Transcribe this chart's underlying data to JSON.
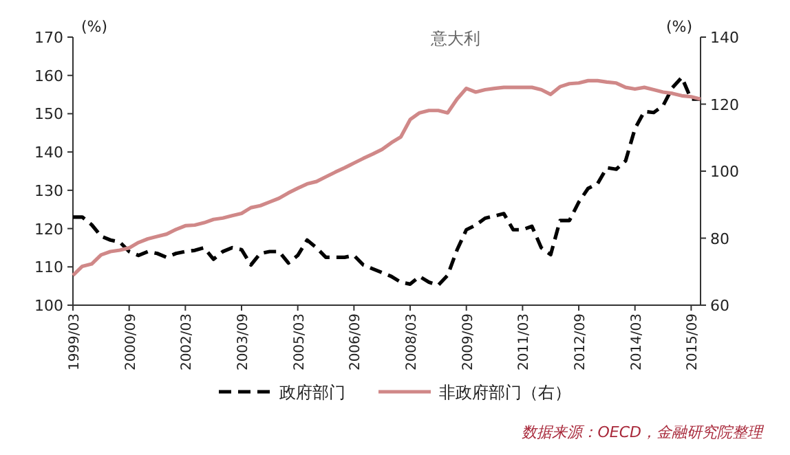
{
  "chart_data": {
    "type": "line",
    "title": "意大利",
    "ylabel": "(%)",
    "y2label": "(%)",
    "x": [
      "1999-03",
      "1999-06",
      "1999-09",
      "1999-12",
      "2000-03",
      "2000-06",
      "2000-09",
      "2000-12",
      "2001-03",
      "2001-06",
      "2001-09",
      "2001-12",
      "2002-03",
      "2002-06",
      "2002-09",
      "2002-12",
      "2003-03",
      "2003-06",
      "2003-09",
      "2003-12",
      "2004-03",
      "2004-06",
      "2004-09",
      "2004-12",
      "2005-03",
      "2005-06",
      "2005-09",
      "2005-12",
      "2006-03",
      "2006-06",
      "2006-09",
      "2006-12",
      "2007-03",
      "2007-06",
      "2007-09",
      "2007-12",
      "2008-03",
      "2008-06",
      "2008-09",
      "2008-12",
      "2009-03",
      "2009-06",
      "2009-09",
      "2009-12",
      "2010-03",
      "2010-06",
      "2010-09",
      "2010-12",
      "2011-03",
      "2011-06",
      "2011-09",
      "2011-12",
      "2012-03",
      "2012-06",
      "2012-09",
      "2012-12",
      "2013-03",
      "2013-06",
      "2013-09",
      "2013-12",
      "2014-03",
      "2014-06",
      "2014-09",
      "2014-12",
      "2015-03",
      "2015-06",
      "2015-09",
      "2015-12"
    ],
    "series": [
      {
        "name": "政府部门",
        "color": "#000000",
        "line_style": "dashed",
        "values": [
          123,
          123,
          121,
          118,
          117,
          116.5,
          114,
          113,
          114,
          113.5,
          112.5,
          113.5,
          114,
          114.3,
          115,
          112,
          114,
          115,
          114.5,
          110.5,
          113.5,
          114,
          114,
          111,
          113,
          117,
          115,
          112.5,
          112.5,
          112.5,
          113,
          110.5,
          109.5,
          108.5,
          107.5,
          106,
          105.5,
          107.5,
          106,
          105.2,
          107.8,
          114.4,
          119.7,
          120.9,
          122.7,
          123.3,
          123.9,
          119.7,
          119.7,
          120.6,
          115,
          113.2,
          122.1,
          122.1,
          126.9,
          130.5,
          131.7,
          135.9,
          135.5,
          137.7,
          146.1,
          150.6,
          150.3,
          152.1,
          156.8,
          159.5,
          153.8,
          153.8
        ]
      },
      {
        "name": "非政府部门（右）",
        "color": "#d08888",
        "axis": "y2",
        "line_style": "solid",
        "values": [
          68.9,
          71.6,
          72.3,
          75,
          76,
          76.4,
          77.1,
          78.7,
          79.8,
          80.5,
          81.2,
          82.6,
          83.7,
          83.9,
          84.6,
          85.6,
          86,
          86.7,
          87.4,
          89.1,
          89.7,
          90.8,
          91.9,
          93.5,
          94.9,
          96.2,
          96.9,
          98.3,
          99.7,
          101,
          102.4,
          103.8,
          105.1,
          106.5,
          108.5,
          110.2,
          115.4,
          117.4,
          118.1,
          118.1,
          117.4,
          121.5,
          124.7,
          123.6,
          124.3,
          124.7,
          125,
          125,
          125,
          125,
          124.3,
          122.9,
          125.2,
          126.1,
          126.3,
          127,
          127,
          126.6,
          126.3,
          125,
          124.5,
          125,
          124.3,
          123.6,
          123.2,
          122.5,
          122.2,
          121.5
        ]
      }
    ],
    "xlim": [
      "1999-03",
      "2015-12"
    ],
    "xticks": [
      {
        "value": "1999-03",
        "label": "1999/03"
      },
      {
        "value": "2000-09",
        "label": "2000/09"
      },
      {
        "value": "2002-03",
        "label": "2002/03"
      },
      {
        "value": "2003-09",
        "label": "2003/09"
      },
      {
        "value": "2005-03",
        "label": "2005/03"
      },
      {
        "value": "2006-09",
        "label": "2006/09"
      },
      {
        "value": "2008-03",
        "label": "2008/03"
      },
      {
        "value": "2009-09",
        "label": "2009/09"
      },
      {
        "value": "2011-03",
        "label": "2011/03"
      },
      {
        "value": "2012-09",
        "label": "2012/09"
      },
      {
        "value": "2014-03",
        "label": "2014/03"
      },
      {
        "value": "2015-09",
        "label": "2015/09"
      }
    ],
    "ylim": [
      100,
      170
    ],
    "yticks": [
      100,
      110,
      120,
      130,
      140,
      150,
      160,
      170
    ],
    "y2lim": [
      60,
      140
    ],
    "y2ticks": [
      60,
      80,
      100,
      120,
      140
    ],
    "grid": false,
    "legend": "bottom",
    "annotations": [
      "数据来源：OECD，金融研究院整理"
    ]
  }
}
